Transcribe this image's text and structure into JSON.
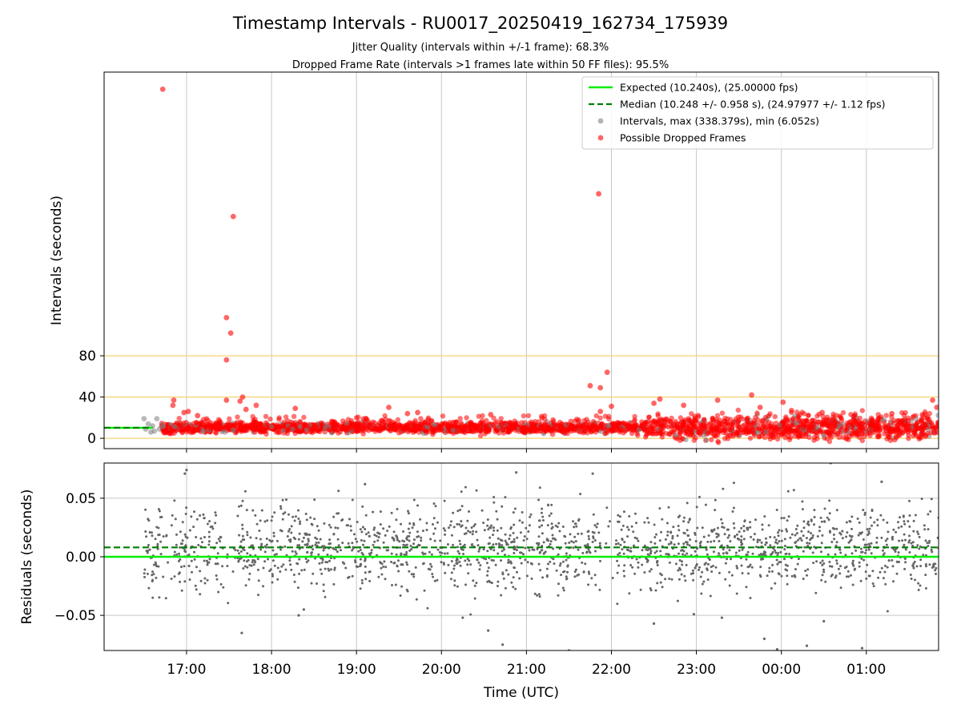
{
  "chart_data": [
    {
      "type": "scatter",
      "title": "Timestamp Intervals - RU0017_20250419_162734_175939",
      "subtitle_lines": [
        "Jitter Quality (intervals within +/-1 frame): 68.3%",
        "Dropped Frame Rate (intervals >1 frames late within 50 FF files): 95.5%"
      ],
      "ylabel": "Intervals (seconds)",
      "xlabel": "",
      "x_unit": "hours since 00:00 UTC (17:00 = 17.0, 01:00 next day = 25.0)",
      "xlim": [
        16.03,
        25.85
      ],
      "ylim": [
        -10,
        355
      ],
      "y_ticks": [
        0,
        40,
        80
      ],
      "y_tick_labels": [
        "0",
        "40",
        "80"
      ],
      "reference_lines_y": [
        0,
        40,
        80
      ],
      "reference_line_color": "#f5d372",
      "legend_position": "top-right",
      "legend": [
        {
          "label": "Expected (10.240s), (25.00000 fps)",
          "style": "line",
          "color": "#00ee00"
        },
        {
          "label": "Median (10.248 +/- 0.958 s), (24.97977 +/- 1.12 fps)",
          "style": "dashed",
          "color": "#007f00"
        },
        {
          "label": "Intervals, max (338.379s), min (6.052s)",
          "style": "dot",
          "color": "#808080"
        },
        {
          "label": "Possible Dropped Frames",
          "style": "dot",
          "color": "#ff0000"
        }
      ],
      "expected_value": 10.24,
      "median_value": 10.248,
      "line_span_x": [
        16.03,
        16.6
      ],
      "dense_band": {
        "x_range": [
          16.7,
          25.85
        ],
        "y_center": 10.4,
        "y_spread": 2.5
      },
      "series": [
        {
          "name": "Possible Dropped Frames",
          "color": "#ff0000",
          "outliers": [
            [
              16.72,
              338.4
            ],
            [
              17.55,
              215
            ],
            [
              17.47,
              117
            ],
            [
              17.52,
              102
            ],
            [
              17.47,
              76
            ],
            [
              17.47,
              37
            ],
            [
              16.85,
              37
            ],
            [
              16.84,
              32
            ],
            [
              16.97,
              25
            ],
            [
              17.02,
              26
            ],
            [
              17.66,
              40
            ],
            [
              17.63,
              36
            ],
            [
              17.7,
              28
            ],
            [
              17.82,
              32
            ],
            [
              17.13,
              22
            ],
            [
              18.28,
              29
            ],
            [
              19.38,
              30
            ],
            [
              19.6,
              24
            ],
            [
              19.72,
              25
            ],
            [
              20.58,
              23
            ],
            [
              21.85,
              237
            ],
            [
              21.95,
              64
            ],
            [
              21.75,
              51
            ],
            [
              21.87,
              49
            ],
            [
              21.87,
              26
            ],
            [
              22.0,
              31
            ],
            [
              22.57,
              38
            ],
            [
              22.5,
              34
            ],
            [
              22.85,
              32
            ],
            [
              23.25,
              37
            ],
            [
              23.65,
              42
            ],
            [
              23.75,
              30
            ],
            [
              24.02,
              35
            ],
            [
              24.12,
              27
            ],
            [
              24.48,
              25
            ],
            [
              25.3,
              24
            ],
            [
              25.78,
              37
            ],
            [
              25.83,
              30
            ]
          ]
        },
        {
          "name": "Intervals, max (338.379s), min (6.052s)",
          "color": "#808080",
          "sample_points": [
            [
              16.5,
              19
            ],
            [
              16.55,
              14
            ],
            [
              16.6,
              12
            ],
            [
              16.62,
              7
            ],
            [
              16.65,
              19
            ],
            [
              16.68,
              9
            ],
            [
              16.52,
              9
            ],
            [
              16.58,
              6
            ],
            [
              17.45,
              6
            ],
            [
              17.55,
              8
            ]
          ]
        }
      ]
    },
    {
      "type": "scatter",
      "title": "",
      "xlabel": "Time (UTC)",
      "ylabel": "Residuals (seconds)",
      "xlim": [
        16.03,
        25.85
      ],
      "ylim": [
        -0.08,
        0.08
      ],
      "x_ticks": [
        17,
        18,
        19,
        20,
        21,
        22,
        23,
        24,
        25
      ],
      "x_tick_labels": [
        "17:00",
        "18:00",
        "19:00",
        "20:00",
        "21:00",
        "22:00",
        "23:00",
        "00:00",
        "01:00"
      ],
      "y_ticks": [
        -0.05,
        0.0,
        0.05
      ],
      "y_tick_labels": [
        "−0.05",
        "0.00",
        "0.05"
      ],
      "grid": true,
      "expected_value": 0.0,
      "median_value": 0.008,
      "residual_spread": 0.018,
      "series": [
        {
          "name": "",
          "color": "#666666",
          "outliers": [
            [
              17.0,
              0.074
            ],
            [
              16.98,
              0.071
            ],
            [
              17.65,
              -0.065
            ],
            [
              18.32,
              -0.05
            ],
            [
              18.38,
              -0.045
            ],
            [
              19.1,
              0.062
            ],
            [
              20.25,
              -0.052
            ],
            [
              20.55,
              -0.063
            ],
            [
              20.72,
              -0.075
            ],
            [
              20.88,
              0.072
            ],
            [
              21.5,
              -0.08
            ],
            [
              21.78,
              0.071
            ],
            [
              22.5,
              -0.057
            ],
            [
              22.97,
              -0.049
            ],
            [
              23.3,
              -0.052
            ],
            [
              23.8,
              -0.07
            ],
            [
              23.95,
              -0.079
            ],
            [
              24.3,
              -0.076
            ],
            [
              24.95,
              -0.078
            ],
            [
              24.58,
              0.08
            ],
            [
              24.5,
              -0.055
            ],
            [
              25.18,
              0.064
            ]
          ]
        }
      ]
    }
  ]
}
